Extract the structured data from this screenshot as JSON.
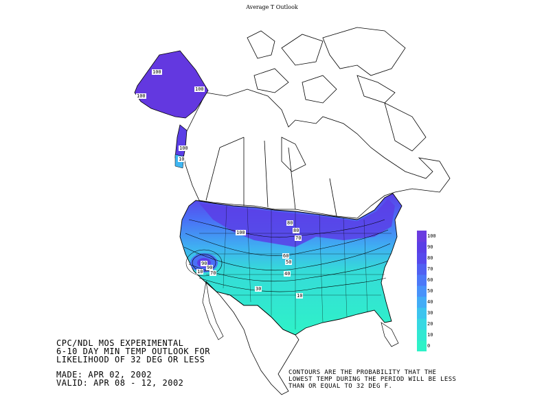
{
  "title": "Average T Outlook",
  "header_lines": [
    "CPC/NDL MOS EXPERIMENTAL",
    "6-10 DAY MIN TEMP OUTLOOK FOR",
    "LIKELIHOOD OF 32 DEG OR LESS"
  ],
  "made": "MADE: APR 02, 2002",
  "valid": "VALID: APR 08 - 12, 2002",
  "note_lines": [
    "CONTOURS ARE THE PROBABILITY THAT THE",
    "LOWEST TEMP DURING THE PERIOD WILL BE LESS",
    "THAN OR EQUAL TO 32 DEG F."
  ],
  "legend": {
    "ticks": [
      "0",
      "10",
      "20",
      "30",
      "40",
      "50",
      "60",
      "70",
      "80",
      "90",
      "100"
    ],
    "colors": [
      "#2ef2c8",
      "#30e8d2",
      "#36d8e2",
      "#3cc4ee",
      "#42acf6",
      "#4892fa",
      "#4c78f8",
      "#5060f2",
      "#5648ec",
      "#5a3ee6",
      "#6a3ce0"
    ]
  },
  "contour_labels": [
    "100",
    "100",
    "100",
    "100",
    "100",
    "80",
    "80",
    "70",
    "60",
    "50",
    "90",
    "90",
    "70",
    "10",
    "40",
    "30",
    "10",
    "10"
  ],
  "colors": {
    "high": "#6338e0",
    "mid": "#3fa6f4",
    "low": "#2ef2c8",
    "coast": "#000000"
  }
}
